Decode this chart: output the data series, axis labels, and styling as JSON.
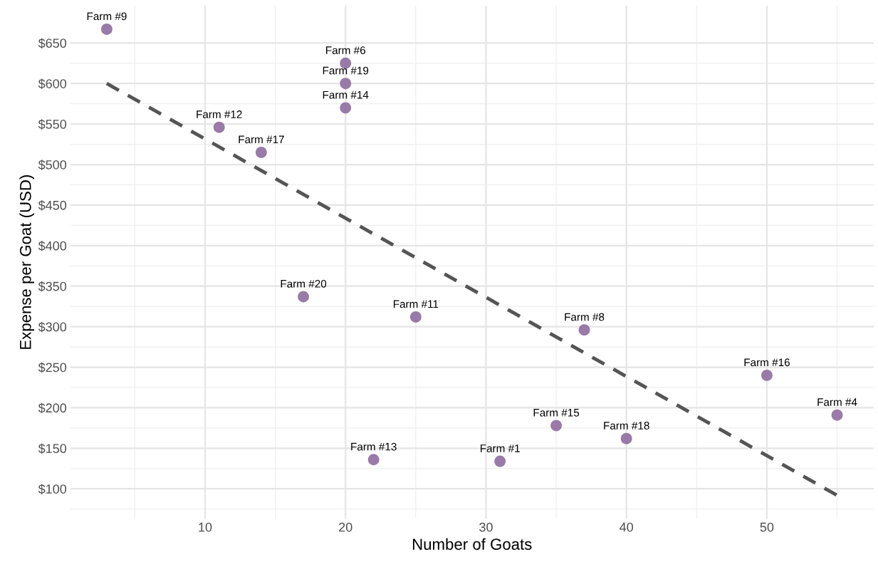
{
  "chart_data": {
    "type": "scatter",
    "xlabel": "Number of Goats",
    "ylabel": "Expense per Goat (USD)",
    "series": [
      {
        "color": "#8e6c9e",
        "x": [
          3,
          20,
          20,
          20,
          11,
          14,
          17,
          25,
          37,
          50,
          55,
          35,
          40,
          22,
          31
        ],
        "values": [
          667,
          625,
          600,
          570,
          546,
          515,
          337,
          312,
          296,
          240,
          191,
          178,
          162,
          136,
          134
        ]
      },
      {
        "type": "line",
        "color": "#555555",
        "line_style": "dashed",
        "x": [
          3,
          55
        ],
        "values": [
          600,
          92
        ]
      }
    ],
    "annotations": [
      {
        "text": "Farm #9",
        "x": 3,
        "y": 667
      },
      {
        "text": "Farm #6",
        "x": 20,
        "y": 625
      },
      {
        "text": "Farm #19",
        "x": 20,
        "y": 600
      },
      {
        "text": "Farm #14",
        "x": 20,
        "y": 570
      },
      {
        "text": "Farm #12",
        "x": 11,
        "y": 546
      },
      {
        "text": "Farm #17",
        "x": 14,
        "y": 515
      },
      {
        "text": "Farm #20",
        "x": 17,
        "y": 337
      },
      {
        "text": "Farm #11",
        "x": 25,
        "y": 312
      },
      {
        "text": "Farm #8",
        "x": 37,
        "y": 296
      },
      {
        "text": "Farm #16",
        "x": 50,
        "y": 240
      },
      {
        "text": "Farm #4",
        "x": 55,
        "y": 191
      },
      {
        "text": "Farm #15",
        "x": 35,
        "y": 178
      },
      {
        "text": "Farm #18",
        "x": 40,
        "y": 162
      },
      {
        "text": "Farm #13",
        "x": 22,
        "y": 136
      },
      {
        "text": "Farm #1",
        "x": 31,
        "y": 134
      }
    ],
    "xlim": [
      0.4,
      57.6
    ],
    "ylim": [
      63,
      696
    ],
    "xticks": [
      10,
      20,
      30,
      40,
      50
    ],
    "yticks": [
      {
        "value": 100,
        "label": "$100"
      },
      {
        "value": 150,
        "label": "$150"
      },
      {
        "value": 200,
        "label": "$200"
      },
      {
        "value": 250,
        "label": "$250"
      },
      {
        "value": 300,
        "label": "$300"
      },
      {
        "value": 350,
        "label": "$350"
      },
      {
        "value": 400,
        "label": "$400"
      },
      {
        "value": 450,
        "label": "$450"
      },
      {
        "value": 500,
        "label": "$500"
      },
      {
        "value": 550,
        "label": "$550"
      },
      {
        "value": 600,
        "label": "$600"
      },
      {
        "value": 650,
        "label": "$650"
      }
    ],
    "grid": true
  }
}
